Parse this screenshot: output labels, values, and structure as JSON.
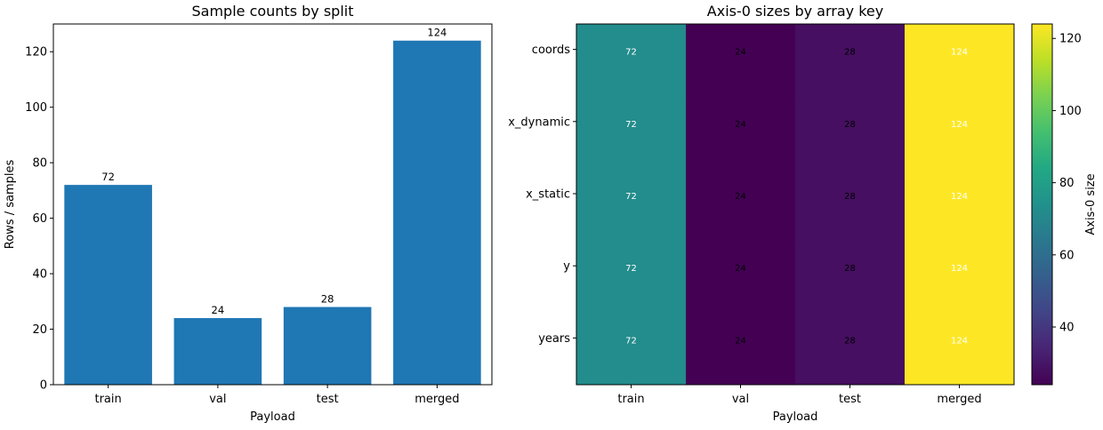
{
  "chart_data": [
    {
      "type": "bar",
      "title": "Sample counts by split",
      "xlabel": "Payload",
      "ylabel": "Rows / samples",
      "categories": [
        "train",
        "val",
        "test",
        "merged"
      ],
      "values": [
        72,
        24,
        28,
        124
      ],
      "data_labels": [
        "72",
        "24",
        "28",
        "124"
      ],
      "ylim": [
        0,
        130
      ],
      "yticks": [
        0,
        20,
        40,
        60,
        80,
        100,
        120
      ],
      "bar_color": "#1f77b4",
      "grid": false
    },
    {
      "type": "heatmap",
      "title": "Axis-0 sizes by array key",
      "xlabel": "Payload",
      "x_categories": [
        "train",
        "val",
        "test",
        "merged"
      ],
      "y_categories": [
        "coords",
        "x_dynamic",
        "x_static",
        "y",
        "years"
      ],
      "values": [
        [
          72,
          24,
          28,
          124
        ],
        [
          72,
          24,
          28,
          124
        ],
        [
          72,
          24,
          28,
          124
        ],
        [
          72,
          24,
          28,
          124
        ],
        [
          72,
          24,
          28,
          124
        ]
      ],
      "colormap": "viridis",
      "vmin": 24,
      "vmax": 124,
      "colorbar_label": "Axis-0 size",
      "colorbar_ticks": [
        40,
        60,
        80,
        100,
        120
      ]
    }
  ]
}
